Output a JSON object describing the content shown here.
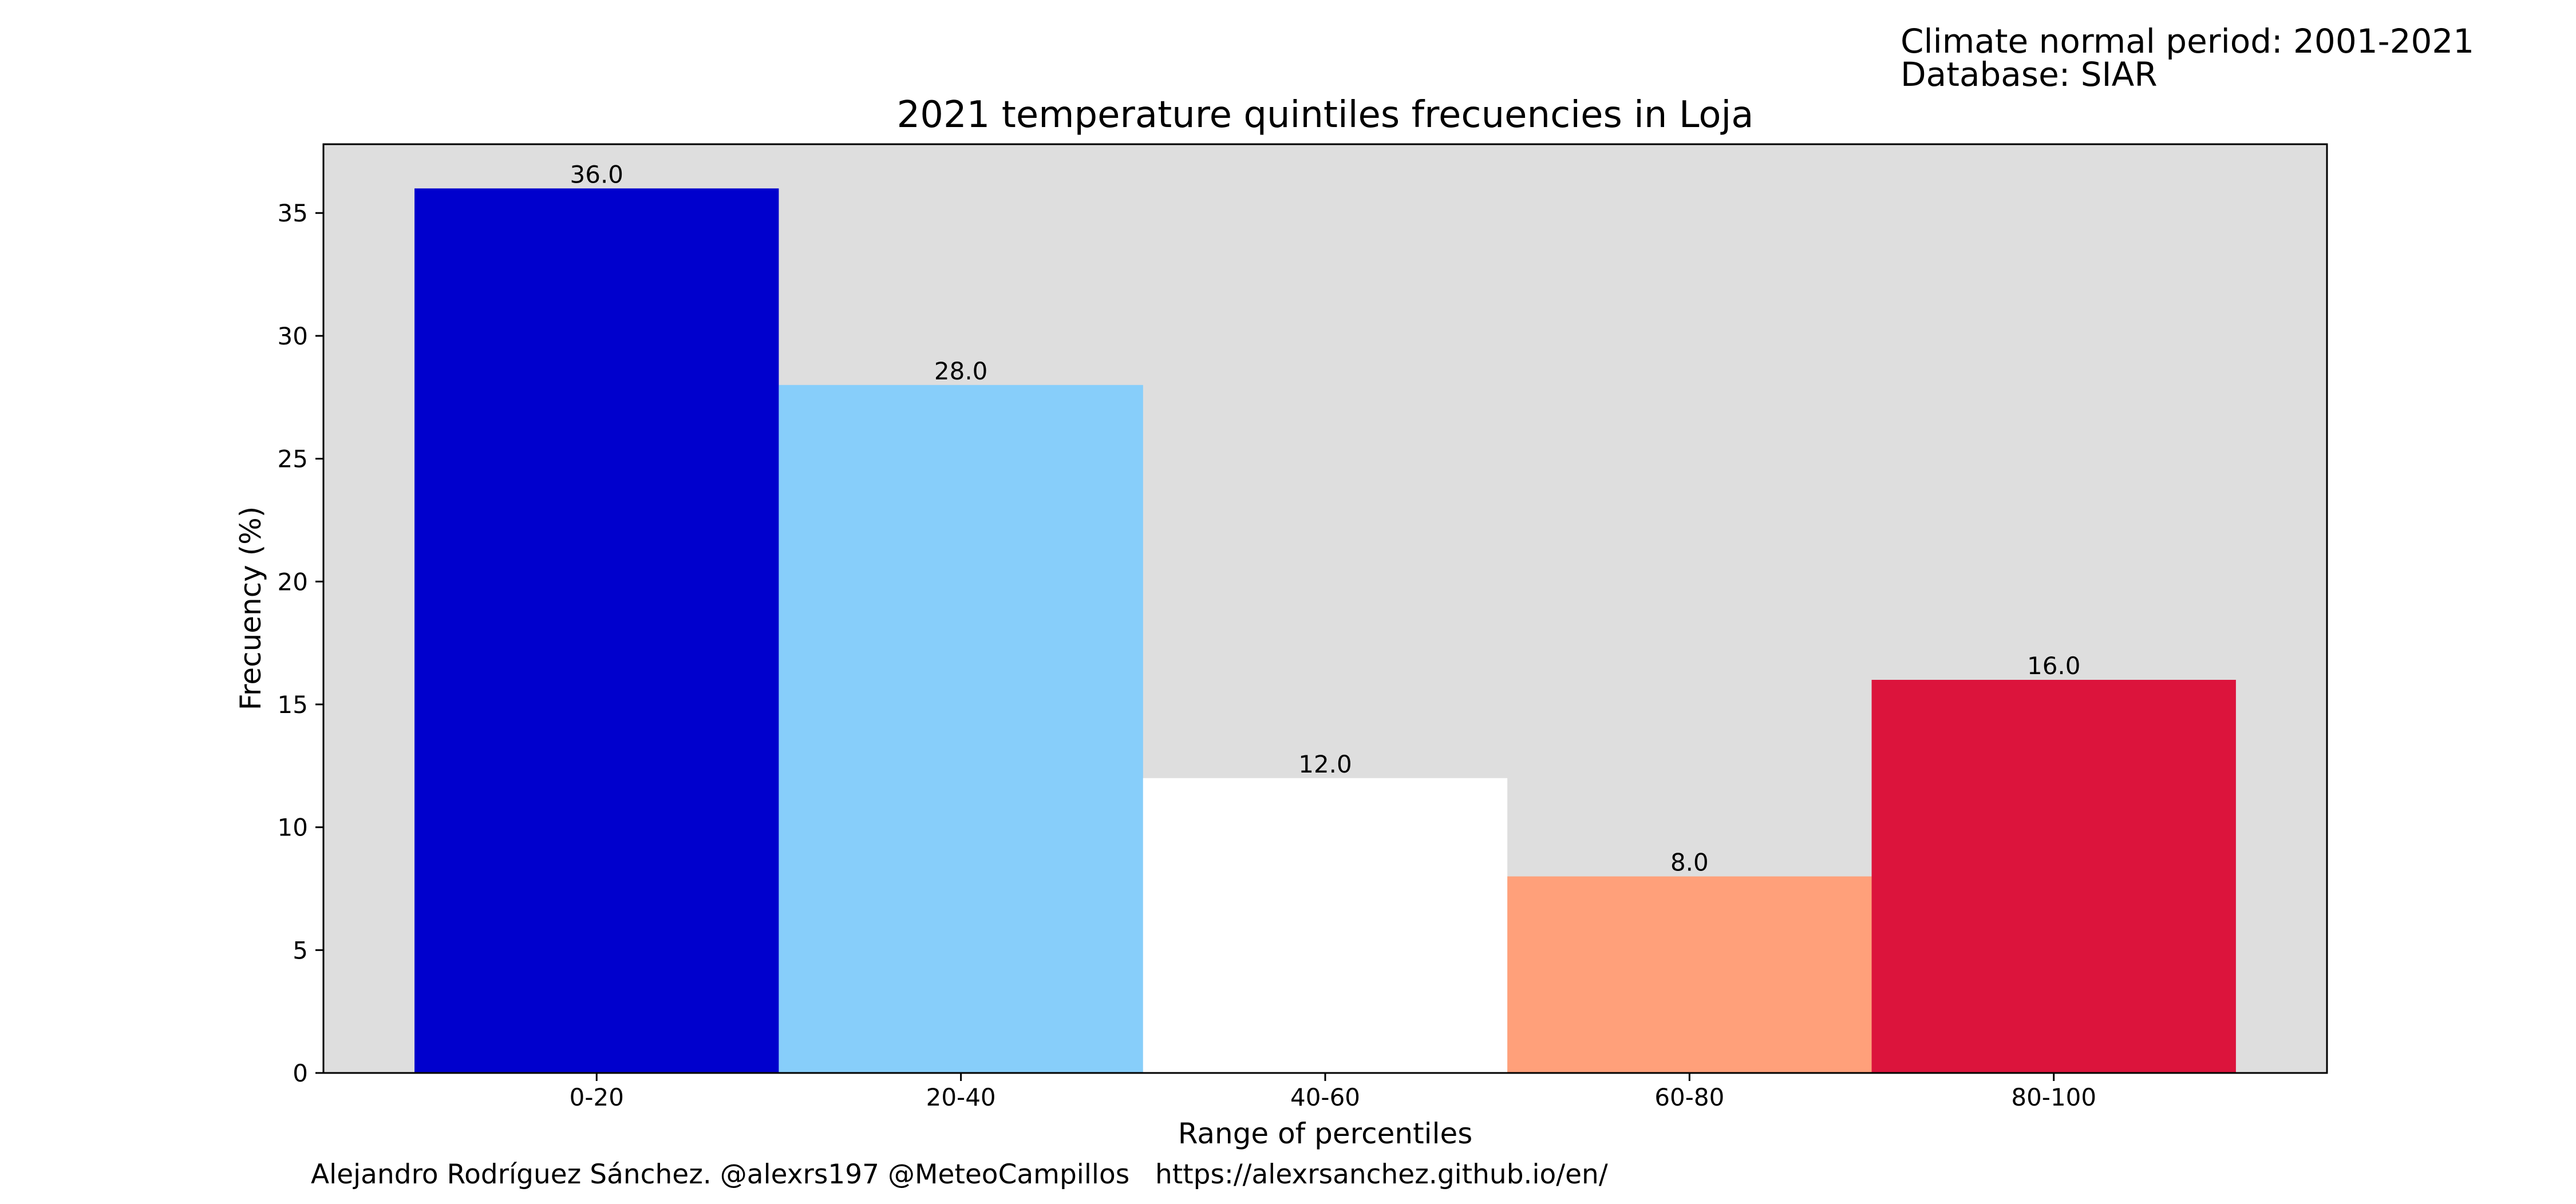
{
  "header_note": {
    "line1": "Climate normal period: 2001-2021",
    "line2": "Database: SIAR"
  },
  "footer": {
    "credit": "Alejandro Rodríguez Sánchez. @alexrs197 @MeteoCampillos   https://alexrsanchez.github.io/en/"
  },
  "chart_data": {
    "type": "bar",
    "title": "2021 temperature quintiles frecuencies in Loja",
    "xlabel": "Range of percentiles",
    "ylabel": "Frecuency (%)",
    "categories": [
      "0-20",
      "20-40",
      "40-60",
      "60-80",
      "80-100"
    ],
    "values": [
      36.0,
      28.0,
      12.0,
      8.0,
      16.0
    ],
    "data_labels": [
      "36.0",
      "28.0",
      "12.0",
      "8.0",
      "16.0"
    ],
    "colors": [
      "#0000cd",
      "#87cefa",
      "#ffffff",
      "#ffa07a",
      "#dc143c"
    ],
    "ylim": [
      0,
      37.8
    ],
    "yticks": [
      0,
      5,
      10,
      15,
      20,
      25,
      30,
      35
    ],
    "grid": false,
    "legend": "none",
    "plot_background": "#dedede"
  }
}
